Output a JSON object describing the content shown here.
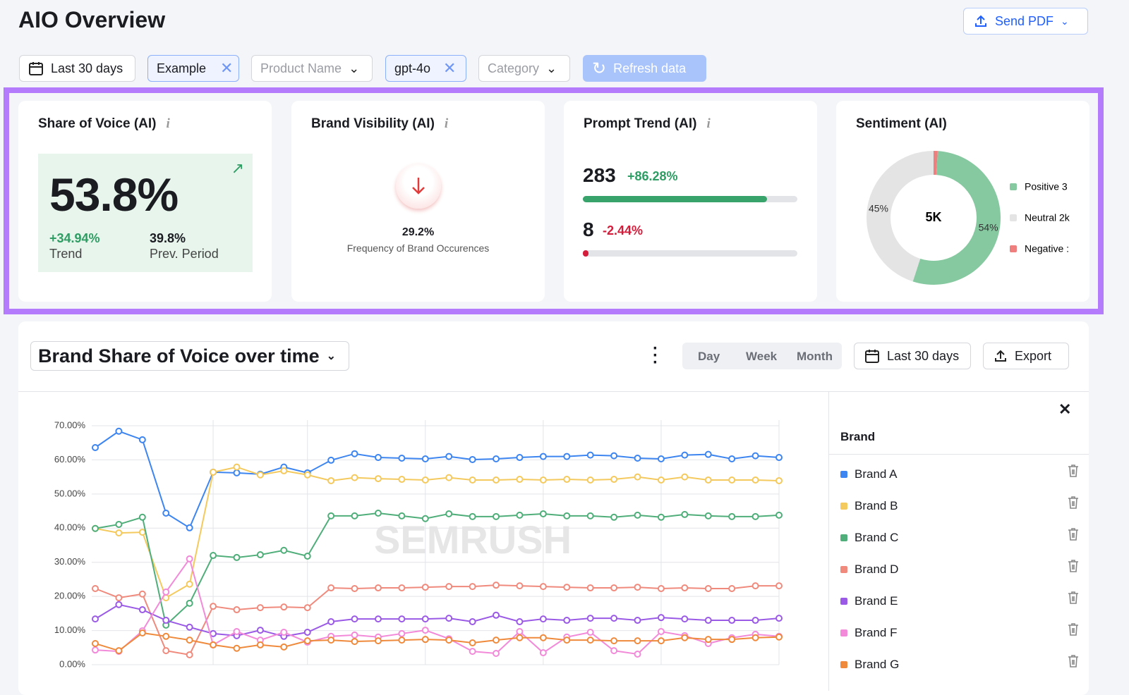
{
  "header": {
    "title": "AIO Overview",
    "send_pdf": "Send PDF"
  },
  "filters": {
    "date": "Last 30 days",
    "project": "Example",
    "product": "Product Name",
    "model": "gpt-4o",
    "category": "Category",
    "refresh": "Refresh data"
  },
  "cards": {
    "share_of_voice": {
      "title": "Share of Voice (AI)",
      "value": "53.8%",
      "trend": "+34.94%",
      "trend_label": "Trend",
      "previous": "39.8%",
      "previous_label": "Prev. Period"
    },
    "brand_visibility": {
      "title": "Brand Visibility (AI)",
      "value": "29.2%",
      "caption": "Frequency of Brand Occurences"
    },
    "prompt_trend": {
      "title": "Prompt Trend (AI)",
      "rows": [
        {
          "count": 283,
          "change": "+86.28%",
          "progress": 86
        },
        {
          "count": 8,
          "change": "-2.44%",
          "progress": 1
        }
      ]
    }
  },
  "chart_controls": {
    "day": "Day",
    "week": "Week",
    "month": "Month",
    "date": "Last 30 days",
    "export": "Export"
  },
  "chart_data": [
    {
      "type": "pie",
      "title": "Sentiment (AI)",
      "center_label": "5K",
      "categories": [
        "Positive 3",
        "Neutral 2k",
        "Negative :"
      ],
      "values": [
        54,
        45,
        1
      ],
      "value_labels": [
        "54%",
        "45%",
        null
      ],
      "colors": [
        "#86c9a0",
        "#e4e4e4",
        "#ef7e7e"
      ]
    },
    {
      "type": "line",
      "title": "Brand Share of Voice over time",
      "watermark": "SEMRUSH",
      "legend_title": "Brand",
      "categories": [
        null,
        null,
        null,
        null,
        null,
        null,
        null,
        null,
        null,
        null,
        null,
        null,
        null,
        null,
        null,
        null,
        null,
        null,
        null,
        null,
        null,
        null,
        null,
        null,
        null,
        null,
        null,
        null,
        null,
        null
      ],
      "ylim": [
        0,
        70
      ],
      "yticks": [
        {
          "value": 0,
          "label": "0.00%"
        },
        {
          "value": 10,
          "label": "10.00%"
        },
        {
          "value": 20,
          "label": "20.00%"
        },
        {
          "value": 30,
          "label": "30.00%"
        },
        {
          "value": 40,
          "label": "40.00%"
        },
        {
          "value": 50,
          "label": "50.00%"
        },
        {
          "value": 60,
          "label": "60.00%"
        },
        {
          "value": 70,
          "label": "70.00%"
        }
      ],
      "grid": true,
      "series": [
        {
          "name": "Brand A",
          "color": "#3d85f0",
          "values": [
            63.6,
            68.4,
            65.9,
            44.4,
            40.1,
            56.4,
            56.2,
            55.8,
            57.9,
            56.2,
            59.9,
            61.8,
            60.7,
            60.5,
            60.3,
            61.0,
            60.1,
            60.3,
            60.7,
            61.0,
            61.0,
            61.4,
            61.2,
            60.5,
            60.3,
            61.4,
            61.6,
            60.3,
            61.2,
            60.7
          ]
        },
        {
          "name": "Brand B",
          "color": "#f4c95d",
          "values": [
            39.9,
            38.6,
            38.8,
            19.6,
            23.6,
            56.4,
            57.9,
            55.6,
            56.8,
            55.6,
            53.9,
            54.8,
            54.5,
            54.3,
            54.1,
            54.8,
            54.1,
            54.1,
            54.3,
            54.1,
            54.3,
            54.1,
            54.3,
            55.0,
            54.1,
            55.0,
            54.1,
            54.1,
            54.1,
            53.9
          ]
        },
        {
          "name": "Brand C",
          "color": "#4fae79",
          "values": [
            39.9,
            41.1,
            43.2,
            11.6,
            18.0,
            32.0,
            31.4,
            32.2,
            33.5,
            31.8,
            43.6,
            43.6,
            44.4,
            43.6,
            42.8,
            44.2,
            43.4,
            43.4,
            43.8,
            44.2,
            43.6,
            43.6,
            43.2,
            43.8,
            43.2,
            44.0,
            43.6,
            43.4,
            43.4,
            43.8
          ]
        },
        {
          "name": "Brand D",
          "color": "#ef8a7d",
          "values": [
            22.3,
            19.6,
            20.7,
            4.1,
            2.9,
            17.1,
            16.1,
            16.7,
            16.9,
            16.7,
            22.5,
            22.3,
            22.5,
            22.5,
            22.7,
            22.9,
            22.9,
            23.3,
            23.1,
            22.9,
            22.7,
            22.5,
            22.5,
            22.7,
            22.3,
            22.5,
            22.3,
            22.3,
            23.1,
            23.1
          ]
        },
        {
          "name": "Brand E",
          "color": "#9a5ae6",
          "values": [
            13.4,
            17.6,
            16.1,
            13.0,
            11.0,
            9.1,
            8.5,
            10.1,
            8.3,
            9.5,
            12.6,
            13.4,
            13.4,
            13.4,
            13.4,
            13.6,
            12.6,
            14.5,
            12.6,
            13.4,
            13.0,
            13.6,
            13.6,
            13.0,
            13.8,
            13.4,
            13.0,
            13.0,
            13.0,
            13.6
          ]
        },
        {
          "name": "Brand F",
          "color": "#f28ad9",
          "values": [
            4.3,
            3.9,
            9.9,
            21.3,
            31.0,
            5.8,
            9.7,
            7.2,
            9.5,
            6.6,
            8.3,
            8.7,
            8.1,
            9.1,
            10.1,
            7.6,
            3.9,
            3.3,
            9.7,
            3.5,
            8.1,
            9.5,
            4.1,
            3.1,
            9.7,
            8.5,
            6.2,
            7.9,
            8.9,
            8.3
          ]
        },
        {
          "name": "Brand G",
          "color": "#ef8a3c",
          "values": [
            6.2,
            4.1,
            9.3,
            8.3,
            7.2,
            5.8,
            4.8,
            5.8,
            5.2,
            7.0,
            7.2,
            6.8,
            7.0,
            7.2,
            7.4,
            7.2,
            6.4,
            7.2,
            7.9,
            7.9,
            7.2,
            7.2,
            7.0,
            7.0,
            7.0,
            7.9,
            7.4,
            7.4,
            7.9,
            8.1
          ]
        }
      ]
    }
  ]
}
